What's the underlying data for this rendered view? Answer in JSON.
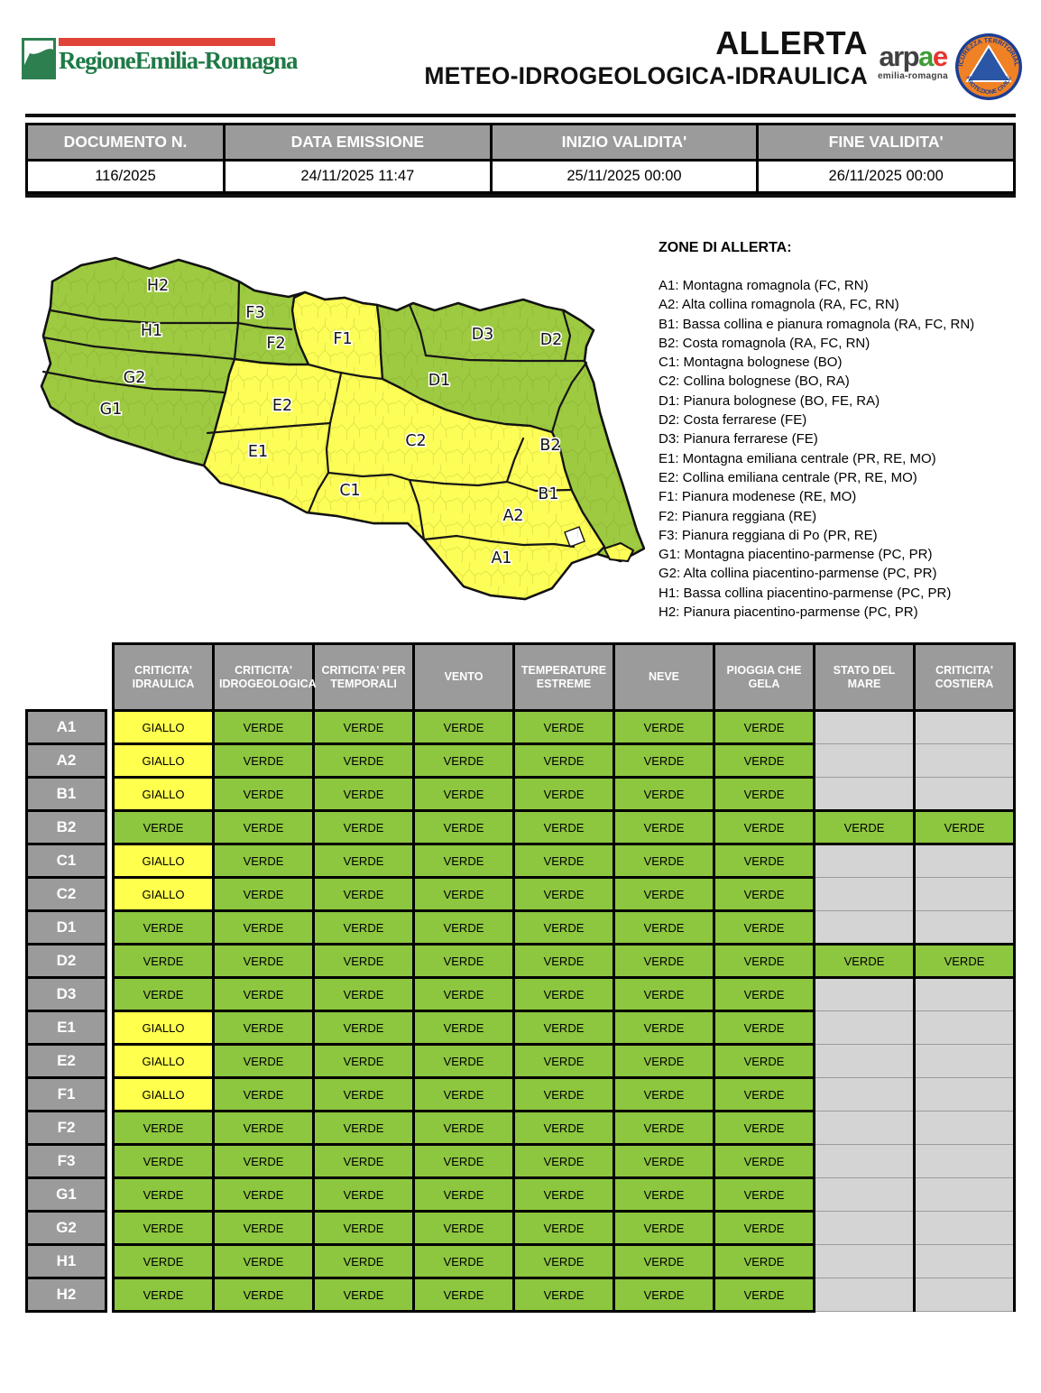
{
  "colors": {
    "verde": "#8dc63f",
    "giallo": "#ffff4d",
    "grigio_header": "#9b9b9b",
    "grigio_empty": "#d4d4d4",
    "map_verde": "#9dca41",
    "map_giallo": "#fdfd57",
    "rosso_logo": "#e04438",
    "verde_logo": "#1e7a46"
  },
  "header": {
    "region_logo_text": "RegioneEmilia-Romagna",
    "title_line1": "ALLERTA",
    "title_line2": "METEO-IDROGEOLOGICA-IDRAULICA",
    "arpae": {
      "parts": [
        {
          "t": "arp",
          "c": "c-dark"
        },
        {
          "t": "a",
          "c": "c-green"
        },
        {
          "t": "e",
          "c": "c-red"
        }
      ],
      "sub": "emilia-romagna"
    },
    "pc_logo": {
      "top": "SICUREZZA TERRITORIALE",
      "bottom": "PROTEZIONE CIVILE"
    }
  },
  "doc_info": {
    "columns": [
      {
        "label": "DOCUMENTO N.",
        "value": "116/2025"
      },
      {
        "label": "DATA EMISSIONE",
        "value": "24/11/2025 11:47"
      },
      {
        "label": "INIZIO VALIDITA'",
        "value": "25/11/2025 00:00"
      },
      {
        "label": "FINE VALIDITA'",
        "value": "26/11/2025 00:00"
      }
    ]
  },
  "map": {
    "zones": [
      {
        "id": "A1",
        "status": "giallo"
      },
      {
        "id": "A2",
        "status": "giallo"
      },
      {
        "id": "B1",
        "status": "giallo"
      },
      {
        "id": "B2",
        "status": "verde"
      },
      {
        "id": "C1",
        "status": "giallo"
      },
      {
        "id": "C2",
        "status": "giallo"
      },
      {
        "id": "D1",
        "status": "verde"
      },
      {
        "id": "D2",
        "status": "verde"
      },
      {
        "id": "D3",
        "status": "verde"
      },
      {
        "id": "E1",
        "status": "giallo"
      },
      {
        "id": "E2",
        "status": "giallo"
      },
      {
        "id": "F1",
        "status": "giallo"
      },
      {
        "id": "F2",
        "status": "verde"
      },
      {
        "id": "F3",
        "status": "verde"
      },
      {
        "id": "G1",
        "status": "verde"
      },
      {
        "id": "G2",
        "status": "verde"
      },
      {
        "id": "H1",
        "status": "verde"
      },
      {
        "id": "H2",
        "status": "verde"
      }
    ]
  },
  "legend": {
    "title": "ZONE DI ALLERTA:",
    "items": [
      "A1: Montagna romagnola (FC, RN)",
      "A2: Alta collina romagnola (RA, FC, RN)",
      "B1: Bassa collina e pianura romagnola (RA, FC, RN)",
      "B2: Costa romagnola (RA, FC, RN)",
      "C1: Montagna bolognese (BO)",
      "C2: Collina bolognese (BO, RA)",
      "D1: Pianura bolognese (BO, FE, RA)",
      "D2: Costa ferrarese (FE)",
      "D3: Pianura ferrarese (FE)",
      "E1: Montagna emiliana centrale (PR, RE, MO)",
      "E2: Collina emiliana centrale (PR, RE, MO)",
      "F1: Pianura modenese (RE, MO)",
      "F2: Pianura reggiana (RE)",
      "F3: Pianura reggiana di Po (PR, RE)",
      "G1: Montagna piacentino-parmense (PC, PR)",
      "G2: Alta collina piacentino-parmense (PC, PR)",
      "H1: Bassa collina piacentino-parmense (PC, PR)",
      "H2: Pianura piacentino-parmense (PC, PR)"
    ]
  },
  "alert_table": {
    "columns": [
      "CRITICITA' IDRAULICA",
      "CRITICITA' IDROGEOLOGICA",
      "CRITICITA' PER TEMPORALI",
      "VENTO",
      "TEMPERATURE ESTREME",
      "NEVE",
      "PIOGGIA CHE GELA",
      "STATO DEL MARE",
      "CRITICITA' COSTIERA"
    ],
    "rows": [
      {
        "zone": "A1",
        "values": [
          "GIALLO",
          "VERDE",
          "VERDE",
          "VERDE",
          "VERDE",
          "VERDE",
          "VERDE",
          "",
          ""
        ]
      },
      {
        "zone": "A2",
        "values": [
          "GIALLO",
          "VERDE",
          "VERDE",
          "VERDE",
          "VERDE",
          "VERDE",
          "VERDE",
          "",
          ""
        ]
      },
      {
        "zone": "B1",
        "values": [
          "GIALLO",
          "VERDE",
          "VERDE",
          "VERDE",
          "VERDE",
          "VERDE",
          "VERDE",
          "",
          ""
        ]
      },
      {
        "zone": "B2",
        "values": [
          "VERDE",
          "VERDE",
          "VERDE",
          "VERDE",
          "VERDE",
          "VERDE",
          "VERDE",
          "VERDE",
          "VERDE"
        ]
      },
      {
        "zone": "C1",
        "values": [
          "GIALLO",
          "VERDE",
          "VERDE",
          "VERDE",
          "VERDE",
          "VERDE",
          "VERDE",
          "",
          ""
        ]
      },
      {
        "zone": "C2",
        "values": [
          "GIALLO",
          "VERDE",
          "VERDE",
          "VERDE",
          "VERDE",
          "VERDE",
          "VERDE",
          "",
          ""
        ]
      },
      {
        "zone": "D1",
        "values": [
          "VERDE",
          "VERDE",
          "VERDE",
          "VERDE",
          "VERDE",
          "VERDE",
          "VERDE",
          "",
          ""
        ]
      },
      {
        "zone": "D2",
        "values": [
          "VERDE",
          "VERDE",
          "VERDE",
          "VERDE",
          "VERDE",
          "VERDE",
          "VERDE",
          "VERDE",
          "VERDE"
        ]
      },
      {
        "zone": "D3",
        "values": [
          "VERDE",
          "VERDE",
          "VERDE",
          "VERDE",
          "VERDE",
          "VERDE",
          "VERDE",
          "",
          ""
        ]
      },
      {
        "zone": "E1",
        "values": [
          "GIALLO",
          "VERDE",
          "VERDE",
          "VERDE",
          "VERDE",
          "VERDE",
          "VERDE",
          "",
          ""
        ]
      },
      {
        "zone": "E2",
        "values": [
          "GIALLO",
          "VERDE",
          "VERDE",
          "VERDE",
          "VERDE",
          "VERDE",
          "VERDE",
          "",
          ""
        ]
      },
      {
        "zone": "F1",
        "values": [
          "GIALLO",
          "VERDE",
          "VERDE",
          "VERDE",
          "VERDE",
          "VERDE",
          "VERDE",
          "",
          ""
        ]
      },
      {
        "zone": "F2",
        "values": [
          "VERDE",
          "VERDE",
          "VERDE",
          "VERDE",
          "VERDE",
          "VERDE",
          "VERDE",
          "",
          ""
        ]
      },
      {
        "zone": "F3",
        "values": [
          "VERDE",
          "VERDE",
          "VERDE",
          "VERDE",
          "VERDE",
          "VERDE",
          "VERDE",
          "",
          ""
        ]
      },
      {
        "zone": "G1",
        "values": [
          "VERDE",
          "VERDE",
          "VERDE",
          "VERDE",
          "VERDE",
          "VERDE",
          "VERDE",
          "",
          ""
        ]
      },
      {
        "zone": "G2",
        "values": [
          "VERDE",
          "VERDE",
          "VERDE",
          "VERDE",
          "VERDE",
          "VERDE",
          "VERDE",
          "",
          ""
        ]
      },
      {
        "zone": "H1",
        "values": [
          "VERDE",
          "VERDE",
          "VERDE",
          "VERDE",
          "VERDE",
          "VERDE",
          "VERDE",
          "",
          ""
        ]
      },
      {
        "zone": "H2",
        "values": [
          "VERDE",
          "VERDE",
          "VERDE",
          "VERDE",
          "VERDE",
          "VERDE",
          "VERDE",
          "",
          ""
        ]
      }
    ]
  }
}
